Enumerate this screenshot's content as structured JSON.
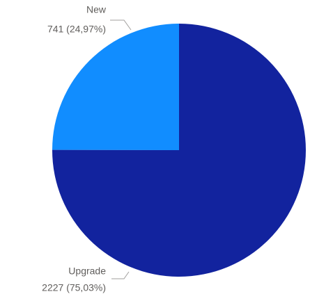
{
  "chart_data": {
    "type": "pie",
    "categories": [
      "New",
      "Upgrade"
    ],
    "values": [
      741,
      2227
    ],
    "value_labels": [
      "741 (24,97%)",
      "2227 (75,03%)"
    ],
    "colors": [
      "#118dff",
      "#12239e"
    ]
  }
}
